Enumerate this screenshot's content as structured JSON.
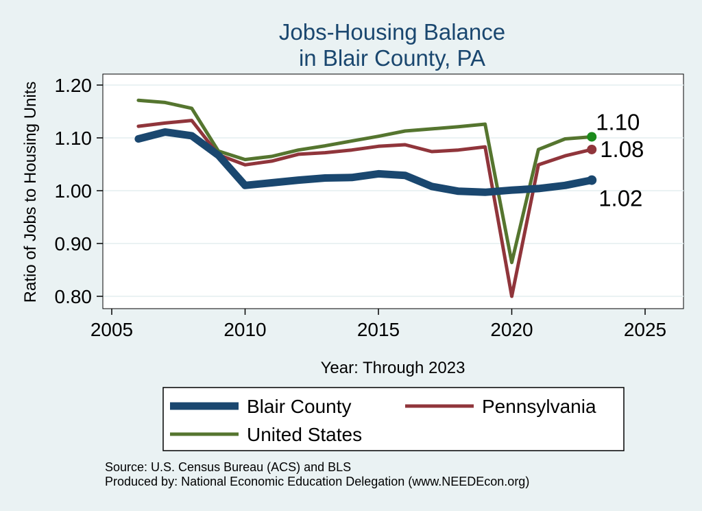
{
  "chart_data": {
    "type": "line",
    "title": [
      "Jobs-Housing Balance",
      "in Blair County, PA"
    ],
    "xlabel": "Year: Through 2023",
    "ylabel": "Ratio of Jobs to Housing Units",
    "xlim": [
      2005,
      2025
    ],
    "ylim": [
      0.78,
      1.22
    ],
    "x_ticks": [
      2005,
      2010,
      2015,
      2020,
      2025
    ],
    "y_ticks": [
      "0.80",
      "0.90",
      "1.00",
      "1.10",
      "1.20"
    ],
    "grid": true,
    "legend_position": "bottom",
    "x": [
      2006,
      2007,
      2008,
      2009,
      2010,
      2011,
      2012,
      2013,
      2014,
      2015,
      2016,
      2017,
      2018,
      2019,
      2020,
      2021,
      2022,
      2023
    ],
    "series": [
      {
        "name": "Blair County",
        "color": "#1a476f",
        "values": [
          1.098,
          1.111,
          1.104,
          1.067,
          1.01,
          1.015,
          1.02,
          1.024,
          1.025,
          1.032,
          1.029,
          1.008,
          0.999,
          0.997,
          1.001,
          1.004,
          1.01,
          1.02
        ],
        "end_label": "1.02"
      },
      {
        "name": "Pennsylvania",
        "color": "#90353b",
        "values": [
          1.122,
          1.128,
          1.133,
          1.068,
          1.049,
          1.056,
          1.069,
          1.072,
          1.077,
          1.084,
          1.087,
          1.074,
          1.077,
          1.083,
          0.8,
          1.049,
          1.066,
          1.078
        ],
        "end_label": "1.08"
      },
      {
        "name": "United States",
        "color": "#55752f",
        "values": [
          1.171,
          1.167,
          1.156,
          1.075,
          1.059,
          1.065,
          1.077,
          1.085,
          1.094,
          1.103,
          1.113,
          1.117,
          1.121,
          1.126,
          0.864,
          1.078,
          1.098,
          1.102
        ],
        "end_label": "1.10",
        "end_marker_color": "#1b8a1b"
      }
    ]
  },
  "notes": {
    "source": "Source: U.S. Census Bureau (ACS) and BLS",
    "produced_by": "Produced by: National Economic Education Delegation (www.NEEDEcon.org)"
  },
  "colors": {
    "background": "#eaf2f3",
    "plot_region": "#ffffff",
    "gridline": "#eaf2f3"
  }
}
